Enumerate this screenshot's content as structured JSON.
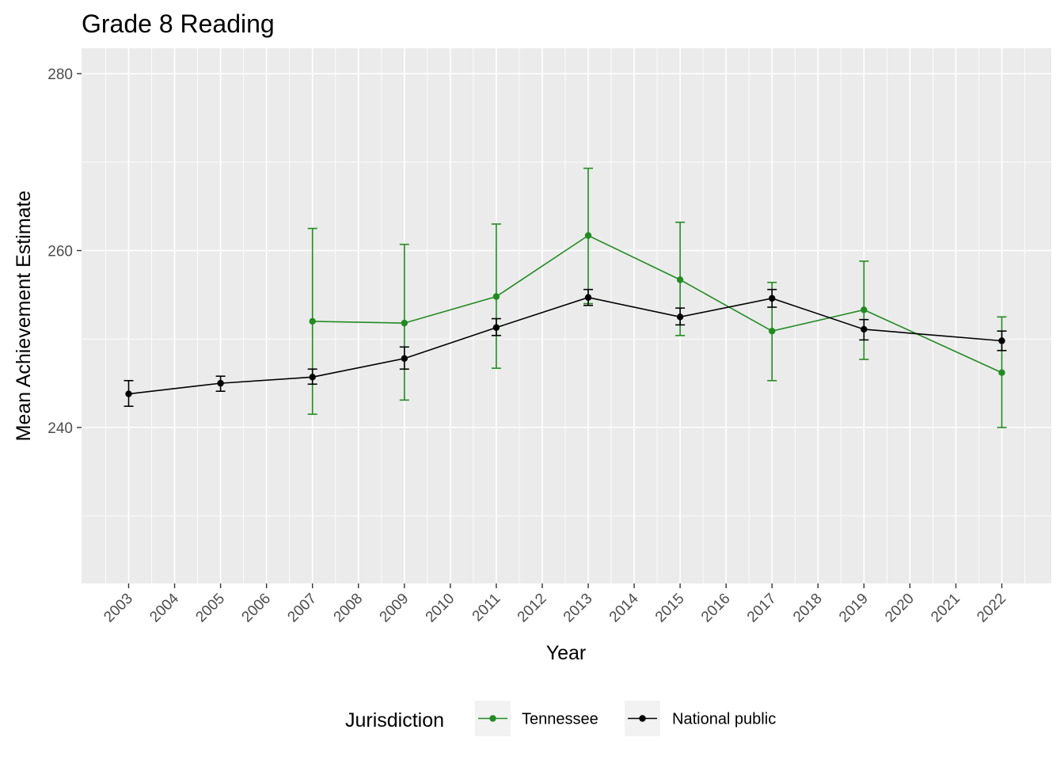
{
  "chart_data": {
    "type": "line",
    "title": "Grade 8 Reading",
    "xlabel": "Year",
    "ylabel": "Mean Achievement Estimate",
    "ylim": [
      222.5,
      282.5
    ],
    "y_major_ticks": [
      240,
      260,
      280
    ],
    "y_minor_ticks": [
      230,
      250,
      270
    ],
    "x_tick_labels": [
      "2003",
      "2004",
      "2005",
      "2006",
      "2007",
      "2008",
      "2009",
      "2010",
      "2011",
      "2012",
      "2013",
      "2014",
      "2015",
      "2016",
      "2017",
      "2018",
      "2019",
      "2020",
      "2021",
      "2022"
    ],
    "x_tick_rotation": 45,
    "grid": true,
    "legend": {
      "title": "Jurisdiction",
      "position": "bottom",
      "entries": [
        "Tennessee",
        "National public"
      ]
    },
    "series": [
      {
        "name": "Tennessee",
        "color": "#228B22",
        "points": [
          {
            "x": 2007,
            "y": 252,
            "lower": 241.5,
            "upper": 262.5
          },
          {
            "x": 2009,
            "y": 251.8,
            "lower": 243.1,
            "upper": 260.7
          },
          {
            "x": 2011,
            "y": 254.8,
            "lower": 246.7,
            "upper": 263.0
          },
          {
            "x": 2013,
            "y": 261.7,
            "lower": 254.0,
            "upper": 269.3
          },
          {
            "x": 2015,
            "y": 256.7,
            "lower": 250.4,
            "upper": 263.2
          },
          {
            "x": 2017,
            "y": 250.9,
            "lower": 245.3,
            "upper": 256.4
          },
          {
            "x": 2019,
            "y": 253.3,
            "lower": 247.7,
            "upper": 258.8
          },
          {
            "x": 2022,
            "y": 246.2,
            "lower": 240.0,
            "upper": 252.5
          }
        ]
      },
      {
        "name": "National public",
        "color": "#000000",
        "points": [
          {
            "x": 2003,
            "y": 243.8,
            "lower": 242.4,
            "upper": 245.3
          },
          {
            "x": 2005,
            "y": 245.0,
            "lower": 244.1,
            "upper": 245.8
          },
          {
            "x": 2007,
            "y": 245.7,
            "lower": 244.9,
            "upper": 246.6
          },
          {
            "x": 2009,
            "y": 247.8,
            "lower": 246.6,
            "upper": 249.1
          },
          {
            "x": 2011,
            "y": 251.3,
            "lower": 250.4,
            "upper": 252.3
          },
          {
            "x": 2013,
            "y": 254.7,
            "lower": 253.8,
            "upper": 255.6
          },
          {
            "x": 2015,
            "y": 252.5,
            "lower": 251.6,
            "upper": 253.5
          },
          {
            "x": 2017,
            "y": 254.6,
            "lower": 253.6,
            "upper": 255.6
          },
          {
            "x": 2019,
            "y": 251.1,
            "lower": 249.9,
            "upper": 252.2
          },
          {
            "x": 2022,
            "y": 249.8,
            "lower": 248.7,
            "upper": 250.9
          }
        ]
      }
    ]
  },
  "colors": {
    "panel_background": "#EBEBEB",
    "grid_line": "#FFFFFF",
    "legend_key_background": "#F2F2F2"
  }
}
